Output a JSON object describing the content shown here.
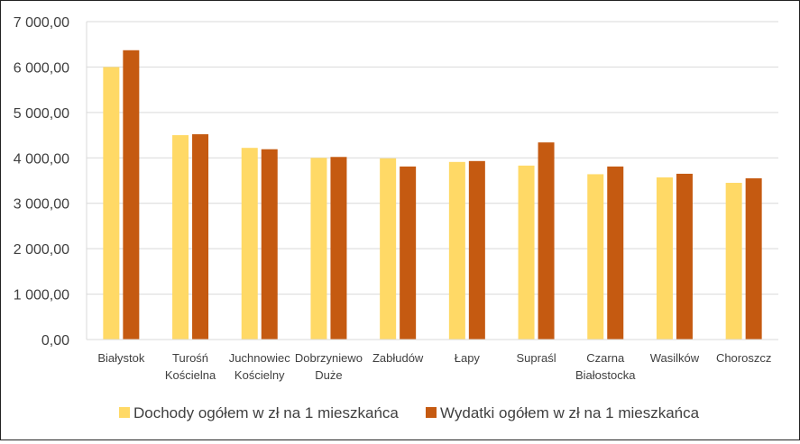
{
  "chart_data": {
    "type": "bar",
    "title": "",
    "xlabel": "",
    "ylabel": "",
    "ylim": [
      0,
      7000
    ],
    "y_ticks": [
      "0,00",
      "1 000,00",
      "2 000,00",
      "3 000,00",
      "4 000,00",
      "5 000,00",
      "6 000,00",
      "7 000,00"
    ],
    "grid": "horizontal",
    "legend_position": "bottom",
    "categories": [
      [
        "Białystok"
      ],
      [
        "Turośń",
        "Kościelna"
      ],
      [
        "Juchnowiec",
        "Kościelny"
      ],
      [
        "Dobrzyniewo",
        "Duże"
      ],
      [
        "Zabłudów"
      ],
      [
        "Łapy"
      ],
      [
        "Supraśl"
      ],
      [
        "Czarna",
        "Białostocka"
      ],
      [
        "Wasilków"
      ],
      [
        "Choroszcz"
      ]
    ],
    "series": [
      {
        "name": "Dochody ogółem w zł na 1 mieszkańca",
        "color": "#FFD966",
        "values": [
          6000,
          4500,
          4220,
          4000,
          3990,
          3910,
          3830,
          3640,
          3570,
          3450
        ]
      },
      {
        "name": "Wydatki ogółem w zł na 1 mieszkańca",
        "color": "#C55A11",
        "values": [
          6370,
          4520,
          4190,
          4020,
          3810,
          3930,
          4340,
          3810,
          3650,
          3550
        ]
      }
    ]
  }
}
